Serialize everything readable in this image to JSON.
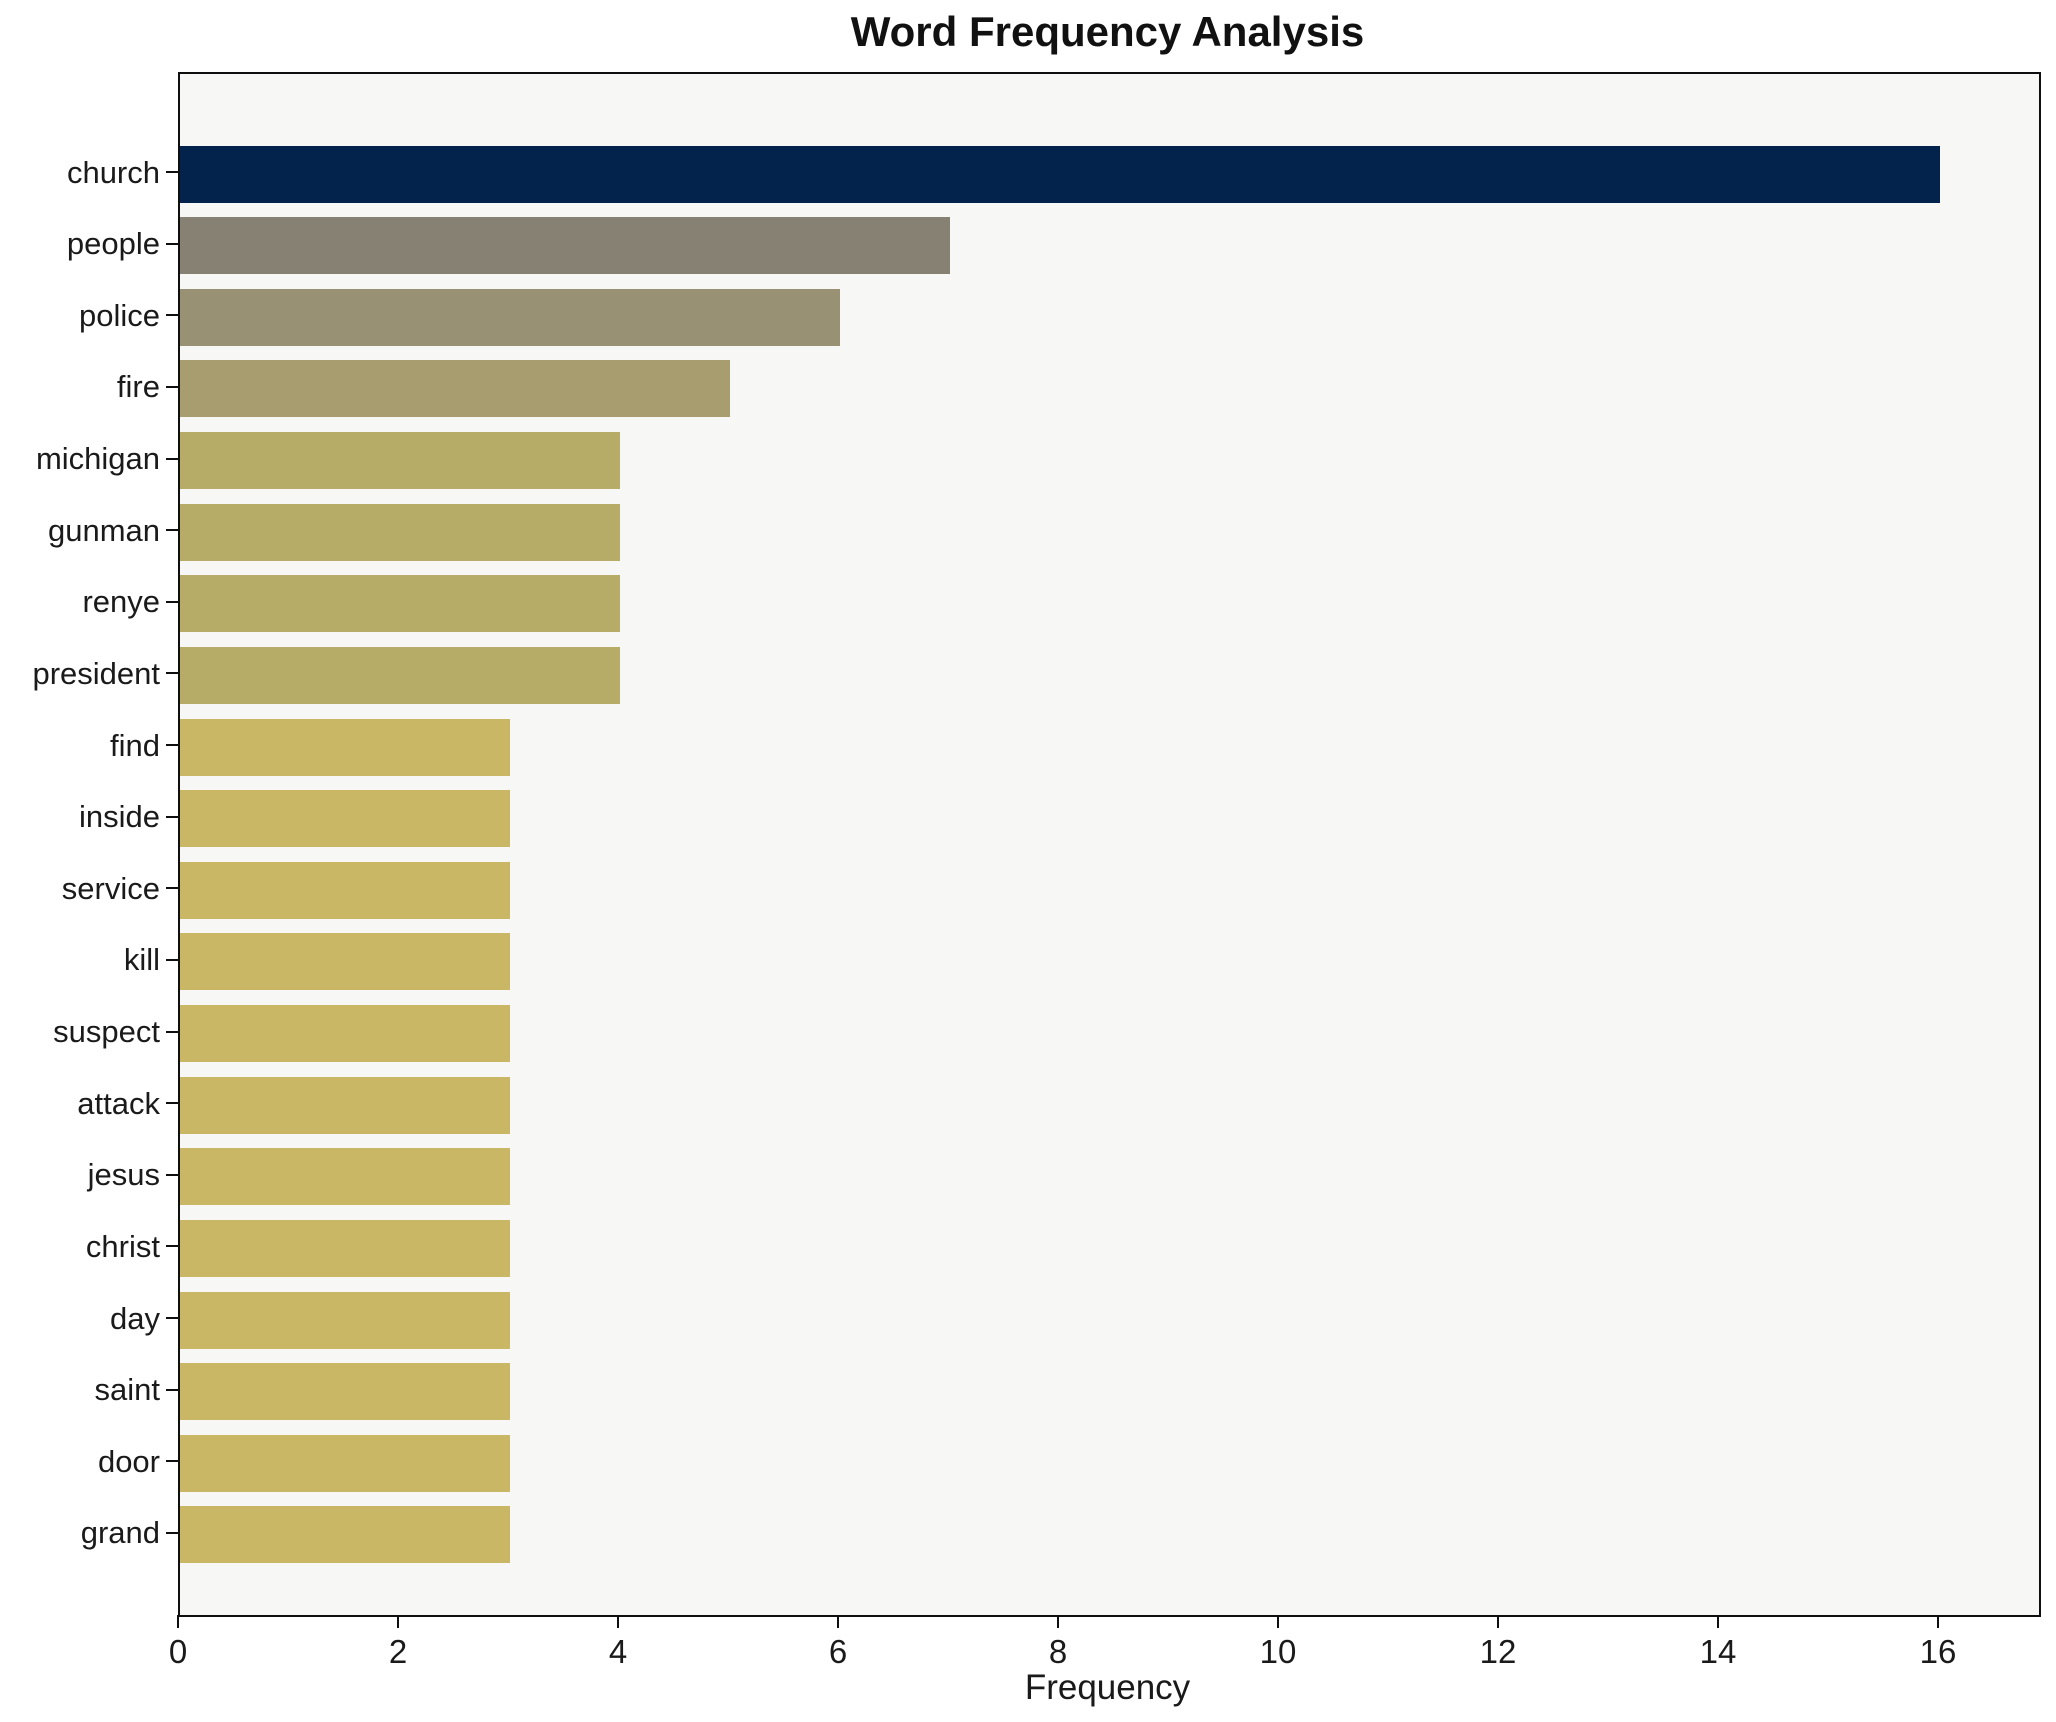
{
  "chart_data": {
    "type": "bar",
    "orientation": "horizontal",
    "title": "Word Frequency Analysis",
    "xlabel": "Frequency",
    "ylabel": "",
    "categories": [
      "church",
      "people",
      "police",
      "fire",
      "michigan",
      "gunman",
      "renye",
      "president",
      "find",
      "inside",
      "service",
      "kill",
      "suspect",
      "attack",
      "jesus",
      "christ",
      "day",
      "saint",
      "door",
      "grand"
    ],
    "values": [
      16,
      7,
      6,
      5,
      4,
      4,
      4,
      4,
      3,
      3,
      3,
      3,
      3,
      3,
      3,
      3,
      3,
      3,
      3,
      3
    ],
    "bar_colors": [
      "#04234c",
      "#878173",
      "#999174",
      "#a89d6e",
      "#b6ab67",
      "#b6ab67",
      "#b6ab67",
      "#b6ab67",
      "#c9b765",
      "#c9b765",
      "#c9b765",
      "#c9b765",
      "#c9b765",
      "#c9b765",
      "#c9b765",
      "#c9b765",
      "#c9b765",
      "#c9b765",
      "#c9b765",
      "#c9b765"
    ],
    "xlim": [
      0,
      16.9
    ],
    "xticks": [
      0,
      2,
      4,
      6,
      8,
      10,
      12,
      14,
      16
    ],
    "grid": false,
    "legend": null,
    "plot_background": "#f7f7f5",
    "figure_background": "#ffffff",
    "axis_color": "#0f0f0f"
  }
}
